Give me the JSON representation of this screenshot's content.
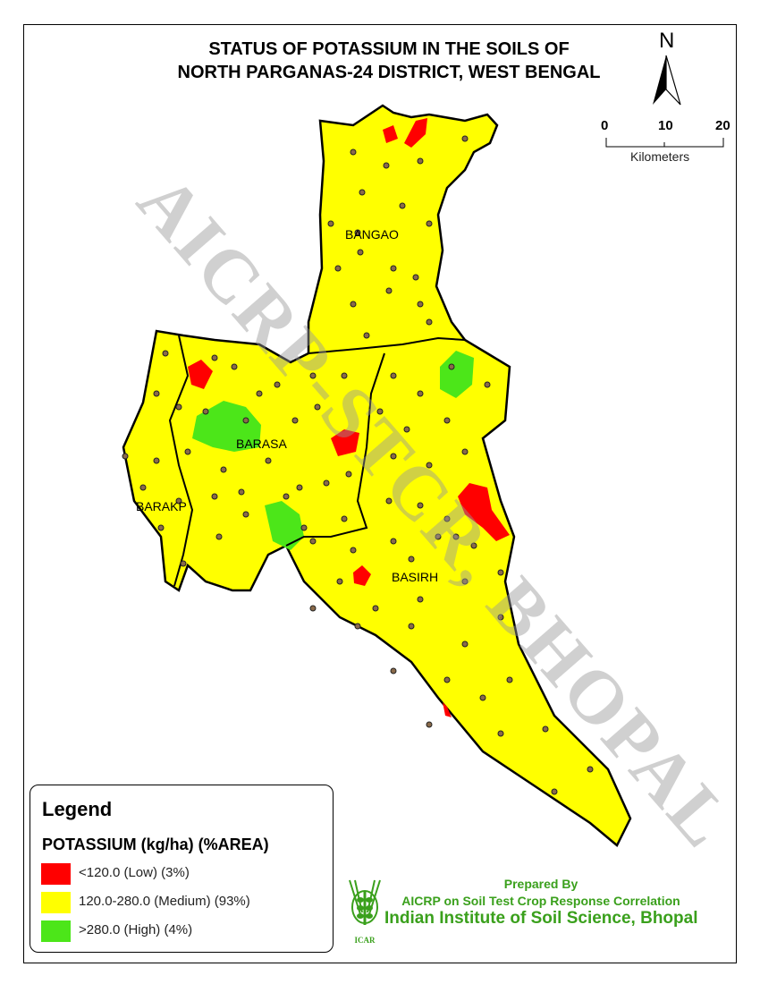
{
  "title": {
    "line1": "STATUS OF POTASSIUM IN THE SOILS OF",
    "line2": "NORTH PARGANAS-24 DISTRICT, WEST BENGAL"
  },
  "watermark": "AICRP-STCR, BHOPAL",
  "north_arrow": {
    "label": "N"
  },
  "scale_bar": {
    "ticks": [
      "0",
      "10",
      "20"
    ],
    "unit": "Kilometers"
  },
  "regions": [
    {
      "label": "BANGAO"
    },
    {
      "label": "BARASA"
    },
    {
      "label": "BARAKP"
    },
    {
      "label": "BASIRH"
    }
  ],
  "legend": {
    "title": "Legend",
    "subtitle": "POTASSIUM (kg/ha) (%AREA)",
    "items": [
      {
        "label": "<120.0 (Low) (3%)",
        "color": "#ff0000"
      },
      {
        "label": "120.0-280.0 (Medium) (93%)",
        "color": "#ffff00"
      },
      {
        "label": ">280.0 (High) (4%)",
        "color": "#4ce619"
      }
    ]
  },
  "credits": {
    "prepared_by": "Prepared By",
    "program": "AICRP on Soil Test Crop Response Correlation",
    "institute": "Indian Institute of Soil Science, Bhopal",
    "logo_text": "ICAR",
    "color": "#3aa01c"
  }
}
